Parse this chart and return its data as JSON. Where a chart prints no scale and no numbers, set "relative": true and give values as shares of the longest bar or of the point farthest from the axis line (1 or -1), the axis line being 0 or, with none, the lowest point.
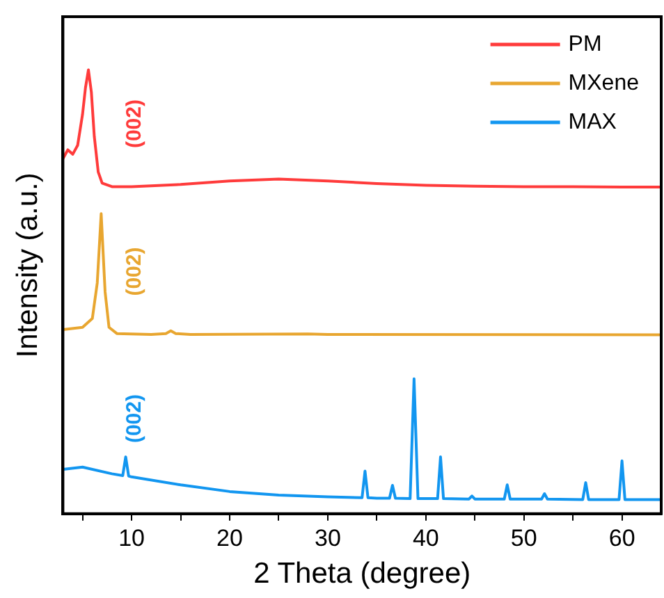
{
  "chart_data": {
    "type": "line",
    "relative": true,
    "xlabel": "2 Theta (degree)",
    "ylabel": "Intensity (a.u.)",
    "xlim": [
      3,
      64
    ],
    "xticks": [
      {
        "value": 5,
        "label": null
      },
      10,
      {
        "value": 15,
        "label": null
      },
      20,
      {
        "value": 25,
        "label": null
      },
      30,
      {
        "value": 35,
        "label": null
      },
      40,
      {
        "value": 45,
        "label": null
      },
      50,
      {
        "value": 55,
        "label": null
      },
      60
    ],
    "legend": "top right",
    "grid": false,
    "marker": "none",
    "line_style": "solid",
    "series": [
      {
        "name": "PM",
        "color": "#ff3b3b",
        "x": [
          3,
          3.5,
          4,
          4.5,
          5,
          5.3,
          5.6,
          5.9,
          6.2,
          6.6,
          7,
          8,
          10,
          15,
          20,
          25,
          30,
          35,
          40,
          45,
          50,
          55,
          60,
          64
        ],
        "values": [
          0.8,
          0.82,
          0.81,
          0.83,
          0.9,
          0.96,
          1,
          0.95,
          0.85,
          0.77,
          0.745,
          0.737,
          0.737,
          0.742,
          0.75,
          0.754,
          0.75,
          0.744,
          0.74,
          0.738,
          0.737,
          0.737,
          0.736,
          0.736
        ]
      },
      {
        "name": "MXene",
        "color": "#e8a630",
        "x": [
          3,
          5,
          6,
          6.5,
          6.9,
          7.3,
          7.7,
          8.5,
          12,
          13.5,
          14,
          14.5,
          16,
          28,
          30,
          64
        ],
        "values": [
          0.415,
          0.42,
          0.44,
          0.52,
          0.676,
          0.5,
          0.42,
          0.406,
          0.404,
          0.406,
          0.412,
          0.406,
          0.404,
          0.405,
          0.404,
          0.403
        ]
      },
      {
        "name": "MAX",
        "color": "#1296f0",
        "x": [
          3,
          5,
          8,
          9.1,
          9.4,
          9.7,
          10,
          15,
          20,
          25,
          30,
          33.5,
          33.8,
          34.1,
          35,
          36.3,
          36.6,
          36.9,
          38.4,
          38.8,
          39.2,
          41.2,
          41.5,
          41.8,
          44.4,
          44.7,
          45,
          48,
          48.3,
          48.6,
          50,
          51.8,
          52.1,
          52.4,
          56,
          56.3,
          56.6,
          59.7,
          60,
          60.3,
          64
        ],
        "values": [
          0.1,
          0.105,
          0.09,
          0.086,
          0.128,
          0.085,
          0.083,
          0.065,
          0.05,
          0.042,
          0.038,
          0.036,
          0.096,
          0.036,
          0.035,
          0.035,
          0.064,
          0.035,
          0.034,
          0.304,
          0.034,
          0.034,
          0.128,
          0.034,
          0.033,
          0.04,
          0.033,
          0.033,
          0.065,
          0.033,
          0.033,
          0.033,
          0.045,
          0.033,
          0.032,
          0.07,
          0.032,
          0.032,
          0.119,
          0.032,
          0.032
        ]
      }
    ],
    "annotations": [
      "(002)",
      "(002)",
      "(002)"
    ]
  }
}
